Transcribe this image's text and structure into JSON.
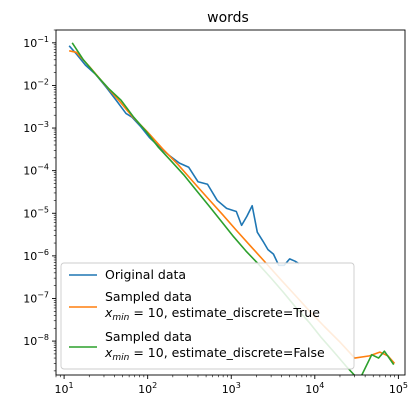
{
  "chart_data": {
    "type": "line",
    "title": "words",
    "xlabel": "",
    "ylabel": "",
    "xscale": "log",
    "yscale": "log",
    "xlim": [
      8,
      120000
    ],
    "ylim": [
      1.6e-09,
      0.2
    ],
    "grid": false,
    "legend_position": "bottom-left",
    "x_ticks": [
      {
        "value": 10,
        "base": "10",
        "exp": "1"
      },
      {
        "value": 100,
        "base": "10",
        "exp": "2"
      },
      {
        "value": 1000,
        "base": "10",
        "exp": "3"
      },
      {
        "value": 10000,
        "base": "10",
        "exp": "4"
      },
      {
        "value": 100000,
        "base": "10",
        "exp": "5"
      }
    ],
    "y_ticks": [
      {
        "value": 0.1,
        "base": "10",
        "exp": "−1"
      },
      {
        "value": 0.01,
        "base": "10",
        "exp": "−2"
      },
      {
        "value": 0.001,
        "base": "10",
        "exp": "−3"
      },
      {
        "value": 0.0001,
        "base": "10",
        "exp": "−4"
      },
      {
        "value": 1e-05,
        "base": "10",
        "exp": "−5"
      },
      {
        "value": 1e-06,
        "base": "10",
        "exp": "−6"
      },
      {
        "value": 1e-07,
        "base": "10",
        "exp": "−7"
      },
      {
        "value": 1e-08,
        "base": "10",
        "exp": "−8"
      }
    ],
    "series": [
      {
        "name": "Original data",
        "color": "#1f77b4",
        "x": [
          11.5,
          14,
          18,
          24,
          32,
          42,
          55,
          65,
          82,
          105,
          140,
          185,
          240,
          310,
          400,
          520,
          680,
          880,
          1150,
          1330,
          1540,
          1780,
          2050,
          2400,
          2750,
          3200,
          3700,
          4300,
          5000,
          5800,
          6500
        ],
        "y": [
          0.085,
          0.055,
          0.03,
          0.018,
          0.009,
          0.0045,
          0.0022,
          0.0018,
          0.0011,
          0.0006,
          0.00035,
          0.00022,
          0.00015,
          0.00012,
          5.5e-05,
          4.8e-05,
          2e-05,
          1.3e-05,
          1.1e-05,
          5.2e-06,
          8.5e-06,
          1.5e-05,
          3.6e-06,
          2.2e-06,
          1.4e-06,
          1.1e-06,
          6e-07,
          6e-07,
          8.5e-07,
          7.5e-07,
          6.5e-07
        ]
      },
      {
        "name": "Sampled data\n$x_{min}=10$, estimate_discrete=True",
        "color": "#ff7f0e",
        "x": [
          11.5,
          14,
          20,
          30,
          45,
          65,
          100,
          150,
          230,
          350,
          520,
          780,
          1150,
          1750,
          2600,
          3900,
          5800,
          8700,
          13000,
          20000,
          30000,
          45000,
          60000,
          75000,
          90000
        ],
        "y": [
          0.065,
          0.06,
          0.028,
          0.011,
          0.0045,
          0.0019,
          0.0008,
          0.00033,
          0.00014,
          5.5e-05,
          2.3e-05,
          9.5e-06,
          4e-06,
          1.6e-06,
          6.8e-07,
          2.8e-07,
          1.2e-07,
          5e-08,
          2.2e-08,
          9.5e-09,
          4e-09,
          4.5e-09,
          5.5e-09,
          4.5e-09,
          3e-09
        ]
      },
      {
        "name": "Sampled data\n$x_{min}=10$, estimate_discrete=False",
        "color": "#2ca02c",
        "x": [
          12.5,
          17,
          24,
          34,
          48,
          68,
          95,
          135,
          190,
          270,
          380,
          540,
          760,
          1070,
          1500,
          2100,
          3000,
          4200,
          6000,
          8500,
          12000,
          17000,
          24000,
          34000,
          48000,
          58000,
          68000,
          88000
        ],
        "y": [
          0.1,
          0.04,
          0.018,
          0.0085,
          0.0045,
          0.0018,
          0.00085,
          0.00035,
          0.00017,
          8e-05,
          3.5e-05,
          1.5e-05,
          6.5e-06,
          2.8e-06,
          1.3e-06,
          6.5e-07,
          3e-07,
          1.4e-07,
          6e-08,
          2.8e-08,
          1.2e-08,
          5.5e-09,
          2.5e-09,
          1.2e-09,
          4.8e-09,
          4e-09,
          5.8e-09,
          2.8e-09
        ]
      }
    ],
    "legend": {
      "entries": [
        {
          "lines": [
            "Original data"
          ],
          "math": false
        },
        {
          "line1": "Sampled data",
          "math_prefix": "x",
          "math_sub": "min",
          "math_rest": " = 10, estimate_discrete=True"
        },
        {
          "line1": "Sampled data",
          "math_prefix": "x",
          "math_sub": "min",
          "math_rest": " = 10, estimate_discrete=False"
        }
      ]
    }
  }
}
